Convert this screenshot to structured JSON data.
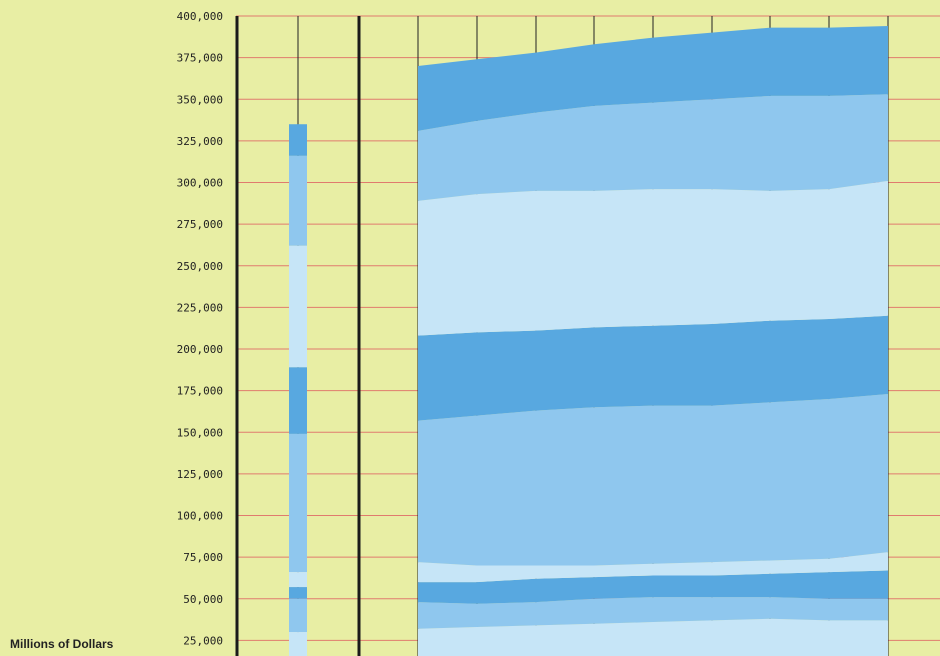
{
  "chart_data": {
    "type": "area",
    "title": "",
    "ylabel": "Millions of Dollars",
    "ylim": [
      0,
      400000
    ],
    "y_ticks": [
      25000,
      50000,
      75000,
      100000,
      125000,
      150000,
      175000,
      200000,
      225000,
      250000,
      275000,
      300000,
      325000,
      350000,
      375000,
      400000
    ],
    "y_tick_labels": [
      "25,000",
      "50,000",
      "75,000",
      "100,000",
      "125,000",
      "150,000",
      "175,000",
      "200,000",
      "225,000",
      "250,000",
      "275,000",
      "300,000",
      "325,000",
      "350,000",
      "375,000",
      "400,000"
    ],
    "grid": true,
    "colors": {
      "background": "#e8eea4",
      "gridline": "#e07b6e",
      "dark": "#58a8e0",
      "medium": "#8fc7ee",
      "light": "#c6e5f7",
      "divider": "#1a1a1a"
    },
    "stacked_bar": {
      "segments": [
        {
          "top": 335000,
          "bottom": 316000,
          "shade": "dark"
        },
        {
          "top": 316000,
          "bottom": 262000,
          "shade": "medium"
        },
        {
          "top": 262000,
          "bottom": 189000,
          "shade": "light"
        },
        {
          "top": 189000,
          "bottom": 149000,
          "shade": "dark"
        },
        {
          "top": 149000,
          "bottom": 66000,
          "shade": "medium"
        },
        {
          "top": 66000,
          "bottom": 57000,
          "shade": "light"
        },
        {
          "top": 57000,
          "bottom": 50000,
          "shade": "dark"
        },
        {
          "top": 50000,
          "bottom": 30000,
          "shade": "medium"
        },
        {
          "top": 30000,
          "bottom": 0,
          "shade": "light"
        }
      ]
    },
    "stacked_area": {
      "x": [
        1,
        2,
        3,
        4,
        5,
        6,
        7,
        8,
        9
      ],
      "layers": [
        {
          "shade": "light",
          "top": [
            32000,
            33000,
            34000,
            35000,
            36000,
            37000,
            38000,
            37000,
            37000
          ]
        },
        {
          "shade": "medium",
          "top": [
            48000,
            47000,
            48000,
            50000,
            51000,
            51000,
            51000,
            50000,
            50000
          ]
        },
        {
          "shade": "dark",
          "top": [
            60000,
            60000,
            62000,
            63000,
            64000,
            64000,
            65000,
            66000,
            67000
          ]
        },
        {
          "shade": "light",
          "top": [
            72000,
            70000,
            70000,
            70000,
            71000,
            72000,
            73000,
            74000,
            78000
          ]
        },
        {
          "shade": "medium",
          "top": [
            157000,
            160000,
            163000,
            165000,
            166000,
            166000,
            168000,
            170000,
            173000
          ]
        },
        {
          "shade": "dark",
          "top": [
            208000,
            210000,
            211000,
            213000,
            214000,
            215000,
            217000,
            218000,
            220000
          ]
        },
        {
          "shade": "light",
          "top": [
            289000,
            293000,
            295000,
            295000,
            296000,
            296000,
            295000,
            296000,
            301000
          ]
        },
        {
          "shade": "medium",
          "top": [
            331000,
            337000,
            342000,
            346000,
            348000,
            350000,
            352000,
            352000,
            353000
          ]
        },
        {
          "shade": "dark",
          "top": [
            370000,
            374000,
            378000,
            383000,
            387000,
            390000,
            393000,
            393000,
            394000
          ]
        }
      ]
    }
  }
}
